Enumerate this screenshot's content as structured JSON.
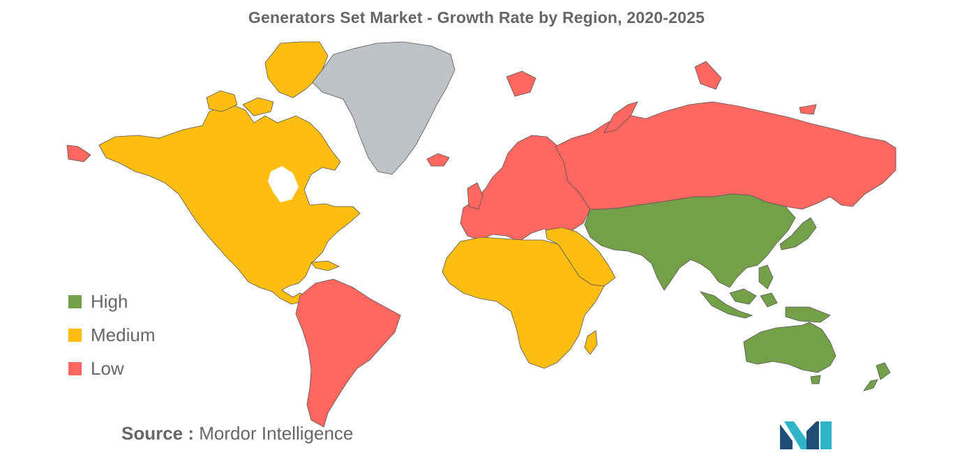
{
  "title": "Generators Set Market - Growth Rate by Region, 2020-2025",
  "legend": [
    {
      "label": "High",
      "color": "#74A04A"
    },
    {
      "label": "Medium",
      "color": "#FDBE11"
    },
    {
      "label": "Low",
      "color": "#FF6760"
    }
  ],
  "no_data_color": "#BFC3C8",
  "regions": [
    {
      "name": "North America",
      "category": "Medium"
    },
    {
      "name": "Greenland",
      "category": "none"
    },
    {
      "name": "South America",
      "category": "Low"
    },
    {
      "name": "Europe",
      "category": "Low"
    },
    {
      "name": "Russia",
      "category": "Low"
    },
    {
      "name": "Africa",
      "category": "Medium"
    },
    {
      "name": "Middle East",
      "category": "Medium"
    },
    {
      "name": "Asia",
      "category": "High"
    },
    {
      "name": "Australia",
      "category": "High"
    },
    {
      "name": "New Zealand",
      "category": "High"
    }
  ],
  "source": {
    "prefix": "Source :",
    "name": "Mordor Intelligence"
  },
  "logo": {
    "icon": "mordor-intelligence-logo",
    "colors": [
      "#1F4E79",
      "#2FB5C8"
    ]
  }
}
